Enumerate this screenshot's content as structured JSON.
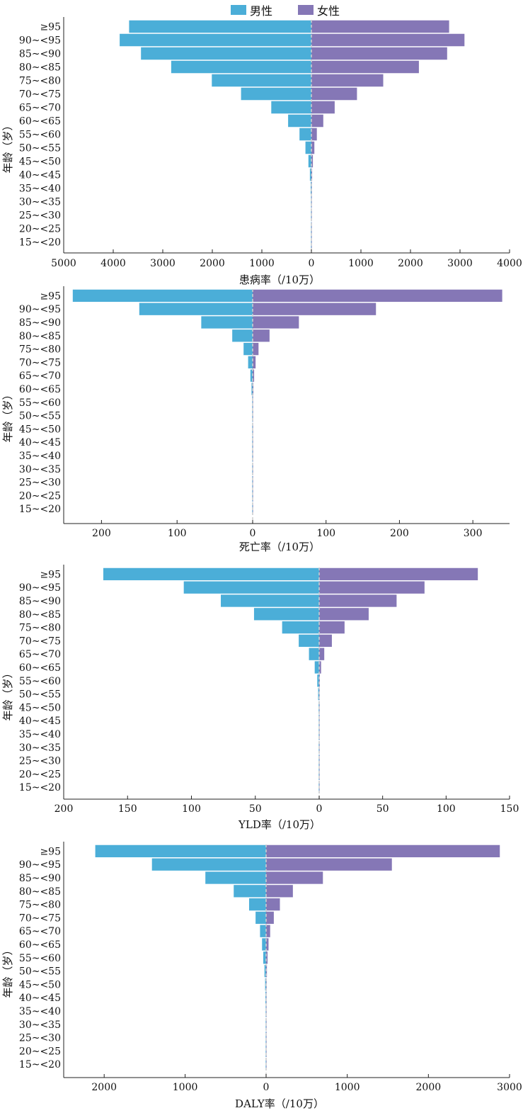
{
  "legend": {
    "male_label": "男性",
    "female_label": "女性"
  },
  "colors": {
    "male": "#4baed8",
    "female": "#8577b6",
    "center": "#cfcfcf"
  },
  "age_groups": [
    "≥95",
    "90~<95",
    "85~<90",
    "80~<85",
    "75~<80",
    "70~<75",
    "65~<70",
    "60~<65",
    "55~<60",
    "50~<55",
    "45~<50",
    "40~<45",
    "35~<40",
    "30~<35",
    "25~<30",
    "20~<25",
    "15~<20"
  ],
  "chart_data": [
    {
      "type": "bar",
      "orientation": "horizontal-butterfly",
      "title": "",
      "xlabel": "患病率（/10万）",
      "ylabel": "年龄（岁）",
      "xlim_left": 5000,
      "xlim_right": 4000,
      "ticks_left": [
        5000,
        4000,
        3000,
        2000,
        1000,
        0
      ],
      "ticks_right": [
        1000,
        2000,
        3000,
        4000
      ],
      "series": [
        {
          "name": "男性",
          "values": [
            3680,
            3870,
            3440,
            2830,
            2010,
            1420,
            810,
            470,
            240,
            120,
            60,
            30,
            15,
            8,
            4,
            2,
            1
          ]
        },
        {
          "name": "女性",
          "values": [
            2780,
            3090,
            2740,
            2170,
            1450,
            920,
            470,
            240,
            110,
            60,
            30,
            15,
            8,
            4,
            2,
            1,
            1
          ]
        }
      ]
    },
    {
      "type": "bar",
      "orientation": "horizontal-butterfly",
      "title": "",
      "xlabel": "死亡率（/10万）",
      "ylabel": "年龄（岁）",
      "xlim_left": 250,
      "xlim_right": 350,
      "ticks_left": [
        200,
        100,
        0
      ],
      "ticks_right": [
        100,
        200,
        300
      ],
      "series": [
        {
          "name": "男性",
          "values": [
            238,
            150,
            68,
            27,
            12,
            6,
            3,
            1.5,
            0.5,
            0.3,
            0.2,
            0.1,
            0.1,
            0.05,
            0.05,
            0.05,
            0.05
          ]
        },
        {
          "name": "女性",
          "values": [
            340,
            168,
            63,
            23,
            8,
            4,
            2,
            1,
            0.5,
            0.3,
            0.2,
            0.1,
            0.1,
            0.05,
            0.05,
            0.05,
            0.05
          ]
        }
      ]
    },
    {
      "type": "bar",
      "orientation": "horizontal-butterfly",
      "title": "",
      "xlabel": "YLD率（/10万）",
      "ylabel": "年龄（岁）",
      "xlim_left": 200,
      "xlim_right": 150,
      "ticks_left": [
        200,
        150,
        100,
        50,
        0
      ],
      "ticks_right": [
        50,
        100,
        150
      ],
      "series": [
        {
          "name": "男性",
          "values": [
            169,
            106,
            77,
            51,
            29,
            16,
            8,
            3.5,
            1.5,
            0.8,
            0.4,
            0.2,
            0.1,
            0.1,
            0.05,
            0.05,
            0.05
          ]
        },
        {
          "name": "女性",
          "values": [
            125,
            83,
            61,
            39,
            20,
            10,
            4,
            1.5,
            0.5,
            0.3,
            0.2,
            0.1,
            0.1,
            0.05,
            0.05,
            0.05,
            0.05
          ]
        }
      ]
    },
    {
      "type": "bar",
      "orientation": "horizontal-butterfly",
      "title": "",
      "xlabel": "DALY率（/10万）",
      "ylabel": "年龄（岁）",
      "xlim_left": 2500,
      "xlim_right": 3000,
      "ticks_left": [
        2000,
        1000,
        0
      ],
      "ticks_right": [
        1000,
        2000,
        3000
      ],
      "series": [
        {
          "name": "男性",
          "values": [
            2110,
            1410,
            750,
            400,
            210,
            130,
            75,
            50,
            35,
            20,
            12,
            8,
            5,
            3,
            2,
            1,
            1
          ]
        },
        {
          "name": "女性",
          "values": [
            2880,
            1550,
            700,
            330,
            170,
            95,
            50,
            30,
            18,
            10,
            6,
            4,
            3,
            2,
            1,
            1,
            1
          ]
        }
      ]
    }
  ]
}
